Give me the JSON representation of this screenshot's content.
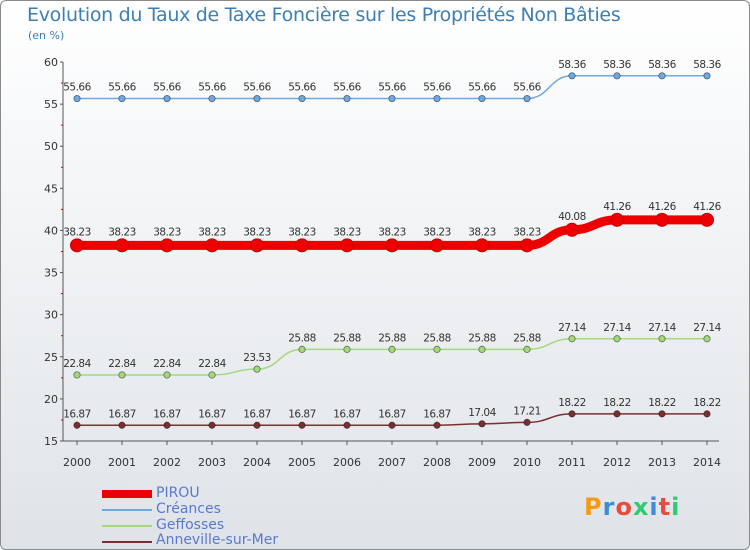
{
  "chart_data": {
    "type": "line",
    "title": "Evolution du Taux de Taxe Foncière sur les Propriétés Non Bâties",
    "ylabel": "(en %)",
    "xlabel": "",
    "ylim": [
      15,
      60
    ],
    "yticks": [
      15,
      20,
      25,
      30,
      35,
      40,
      45,
      50,
      55,
      60
    ],
    "categories": [
      "2000",
      "2001",
      "2002",
      "2003",
      "2004",
      "2005",
      "2006",
      "2007",
      "2008",
      "2009",
      "2010",
      "2011",
      "2012",
      "2013",
      "2014"
    ],
    "series": [
      {
        "name": "PIROU",
        "color": "#ee0000",
        "width": "thick",
        "values": [
          38.23,
          38.23,
          38.23,
          38.23,
          38.23,
          38.23,
          38.23,
          38.23,
          38.23,
          38.23,
          38.23,
          40.08,
          41.26,
          41.26,
          41.26
        ],
        "labels": [
          "38.23",
          "38.23",
          "38.23",
          "38.23",
          "38.23",
          "38.23",
          "38.23",
          "38.23",
          "38.23",
          "38.23",
          "38.23",
          "40.08",
          "41.26",
          "41.26",
          "41.26"
        ]
      },
      {
        "name": "Créances",
        "color": "#6fa8dc",
        "width": "thin",
        "values": [
          55.66,
          55.66,
          55.66,
          55.66,
          55.66,
          55.66,
          55.66,
          55.66,
          55.66,
          55.66,
          55.66,
          58.36,
          58.36,
          58.36,
          58.36
        ],
        "labels": [
          "55.66",
          "55.66",
          "55.66",
          "55.66",
          "55.66",
          "55.66",
          "55.66",
          "55.66",
          "55.66",
          "55.66",
          "55.66",
          "58.36",
          "58.36",
          "58.36",
          "58.36"
        ]
      },
      {
        "name": "Geffosses",
        "color": "#a2d97a",
        "width": "thin",
        "values": [
          22.84,
          22.84,
          22.84,
          22.84,
          23.53,
          25.88,
          25.88,
          25.88,
          25.88,
          25.88,
          25.88,
          27.14,
          27.14,
          27.14,
          27.14
        ],
        "labels": [
          "22.84",
          "22.84",
          "22.84",
          "22.84",
          "23.53",
          "25.88",
          "25.88",
          "25.88",
          "25.88",
          "25.88",
          "25.88",
          "27.14",
          "27.14",
          "27.14",
          "27.14"
        ]
      },
      {
        "name": "Anneville-sur-Mer",
        "color": "#7a3030",
        "width": "thin",
        "values": [
          16.87,
          16.87,
          16.87,
          16.87,
          16.87,
          16.87,
          16.87,
          16.87,
          16.87,
          17.04,
          17.21,
          18.22,
          18.22,
          18.22,
          18.22
        ],
        "labels": [
          "16.87",
          "16.87",
          "16.87",
          "16.87",
          "16.87",
          "16.87",
          "16.87",
          "16.87",
          "16.87",
          "17.04",
          "17.21",
          "18.22",
          "18.22",
          "18.22",
          "18.22"
        ]
      }
    ],
    "legend": [
      "PIROU",
      "Créances",
      "Geffosses",
      "Anneville-sur-Mer"
    ],
    "legend_position": "bottom-left"
  },
  "logo": {
    "text": "Proxiti",
    "colors": [
      "#f39c12",
      "#3a8fd8",
      "#e74c3c",
      "#2ecc71",
      "#3a8fd8",
      "#e74c3c",
      "#2ecc71"
    ]
  }
}
